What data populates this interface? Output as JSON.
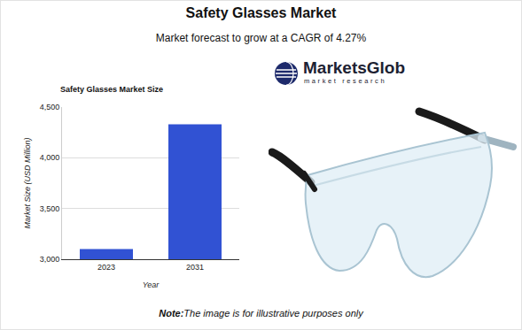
{
  "header": {
    "title": "Safety Glasses Market",
    "subtitle": "Market forecast to grow at a CAGR of 4.27%"
  },
  "logo": {
    "name": "MarketsGlob",
    "tagline": "market research"
  },
  "note": {
    "label": "Note:",
    "text": "The image is for illustrative purposes only"
  },
  "chart_data": {
    "type": "bar",
    "title": "Safety Glasses Market Size",
    "xlabel": "Year",
    "ylabel": "Market Size (USD Million)",
    "categories": [
      "2023",
      "2031"
    ],
    "values": [
      3100,
      4330
    ],
    "color": "#3152d3",
    "ylim": [
      3000,
      4500
    ],
    "yticks": [
      {
        "value": 3000,
        "label": "3,000"
      },
      {
        "value": 3500,
        "label": "3,500"
      },
      {
        "value": 4000,
        "label": "4,000"
      },
      {
        "value": 4500,
        "label": "4,500"
      }
    ],
    "grid": true
  }
}
